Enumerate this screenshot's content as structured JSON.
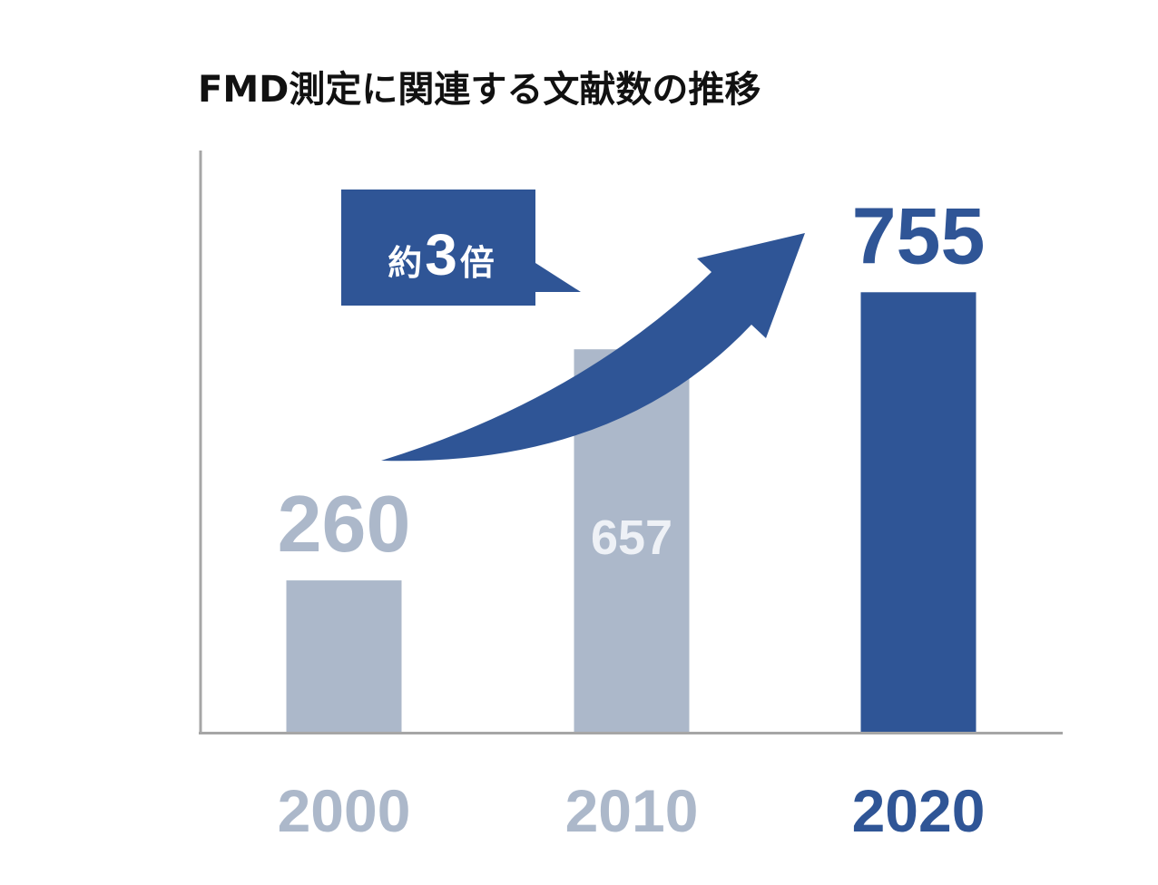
{
  "chart_data": {
    "type": "bar",
    "title": "FMD測定に関連する文献数の推移",
    "categories": [
      "2000",
      "2010",
      "2020"
    ],
    "values": [
      260,
      657,
      755
    ],
    "ylim": [
      0,
      1000
    ],
    "grid": false,
    "annotation": {
      "prefix": "約",
      "number": "3",
      "suffix": "倍"
    },
    "colors": {
      "muted": "#acb8ca",
      "accent": "#2f5596",
      "inside_label": "#eef1f6",
      "axis": "#a6a6a6"
    }
  }
}
